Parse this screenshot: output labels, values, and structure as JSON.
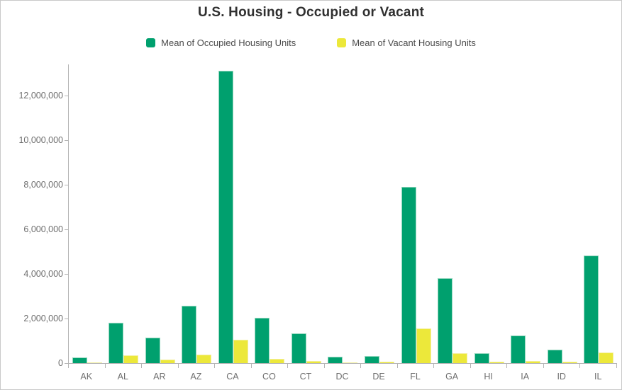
{
  "chart": {
    "title": "U.S. Housing - Occupied or Vacant"
  },
  "chart_data": {
    "type": "bar",
    "title": "U.S. Housing - Occupied or Vacant",
    "xlabel": "",
    "ylabel": "",
    "categories": [
      "AK",
      "AL",
      "AR",
      "AZ",
      "CA",
      "CO",
      "CT",
      "DC",
      "DE",
      "FL",
      "GA",
      "HI",
      "IA",
      "ID",
      "IL"
    ],
    "series": [
      {
        "name": "Mean of Occupied Housing Units",
        "color": "#00a06e",
        "border_color": "#93d6bd",
        "values": [
          250000,
          1820000,
          1130000,
          2580000,
          13100000,
          2020000,
          1340000,
          280000,
          330000,
          7900000,
          3800000,
          430000,
          1230000,
          600000,
          4840000
        ]
      },
      {
        "name": "Mean of Vacant Housing Units",
        "color": "#ece83a",
        "border_color": "#f3efa0",
        "values": [
          40000,
          340000,
          170000,
          370000,
          1060000,
          190000,
          90000,
          30000,
          60000,
          1550000,
          460000,
          70000,
          90000,
          70000,
          470000
        ]
      }
    ],
    "ylim": [
      0,
      13400000
    ],
    "yticks": [
      0,
      2000000,
      4000000,
      6000000,
      8000000,
      10000000,
      12000000
    ],
    "grid": false,
    "legend_position": "top",
    "axis_color": "#b5b5b5",
    "tick_label_color": "#6e6e6e"
  }
}
